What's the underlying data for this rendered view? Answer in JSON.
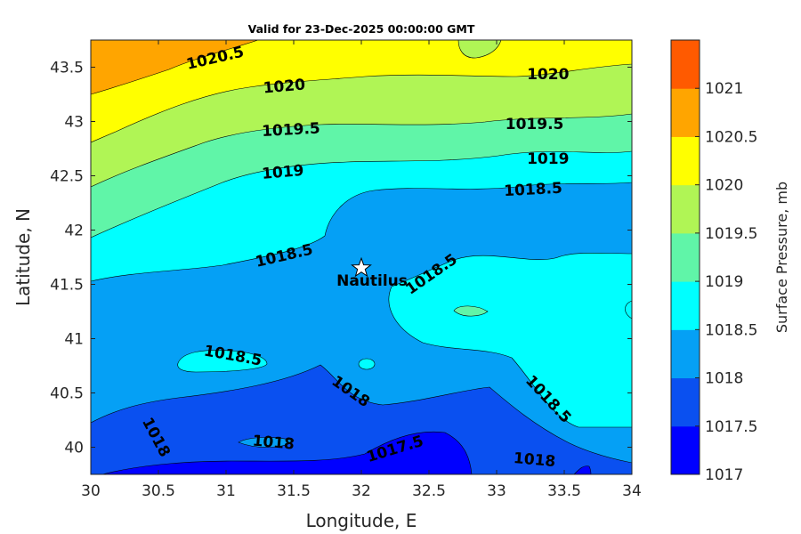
{
  "chart_data": {
    "type": "contourf",
    "title": "Valid for 23-Dec-2025 00:00:00 GMT",
    "xlabel": "Longitude, E",
    "ylabel": "Latitude, N",
    "xlim": [
      30,
      34
    ],
    "ylim": [
      39.75,
      43.75
    ],
    "xticks": [
      "30",
      "30.5",
      "31",
      "31.5",
      "32",
      "32.5",
      "33",
      "33.5",
      "34"
    ],
    "yticks": [
      "40",
      "40.5",
      "41",
      "41.5",
      "42",
      "42.5",
      "43",
      "43.5"
    ],
    "colorbar": {
      "label": "Surface Pressure, mb",
      "ticks": [
        "1017",
        "1017.5",
        "1018",
        "1018.5",
        "1019",
        "1019.5",
        "1020",
        "1020.5",
        "1021"
      ],
      "colors": [
        "#0000ff",
        "#0a50f0",
        "#05a0f5",
        "#00ffff",
        "#60f5a8",
        "#b0f555",
        "#ffff00",
        "#ffa500",
        "#ff5a00"
      ]
    },
    "contour_labels": [
      {
        "text": "1020.5",
        "lon": 30.92,
        "lat": 43.58,
        "angle": -13
      },
      {
        "text": "1020",
        "lon": 31.43,
        "lat": 43.32,
        "angle": -5
      },
      {
        "text": "1020",
        "lon": 33.38,
        "lat": 43.43,
        "angle": 0
      },
      {
        "text": "1019.5",
        "lon": 31.48,
        "lat": 42.92,
        "angle": -3
      },
      {
        "text": "1019.5",
        "lon": 33.28,
        "lat": 42.97,
        "angle": 0
      },
      {
        "text": "1019",
        "lon": 31.42,
        "lat": 42.53,
        "angle": -5
      },
      {
        "text": "1019",
        "lon": 33.38,
        "lat": 42.65,
        "angle": 0
      },
      {
        "text": "1018.5",
        "lon": 33.27,
        "lat": 42.37,
        "angle": -3
      },
      {
        "text": "1018.5",
        "lon": 31.43,
        "lat": 41.76,
        "angle": -13
      },
      {
        "text": "1018.5",
        "lon": 32.52,
        "lat": 41.59,
        "angle": -35
      },
      {
        "text": "1018.5",
        "lon": 31.05,
        "lat": 40.84,
        "angle": 10
      },
      {
        "text": "1018",
        "lon": 31.92,
        "lat": 40.51,
        "angle": 35
      },
      {
        "text": "1018.5",
        "lon": 33.38,
        "lat": 40.44,
        "angle": 47
      },
      {
        "text": "1018",
        "lon": 30.48,
        "lat": 40.09,
        "angle": 62
      },
      {
        "text": "1018",
        "lon": 31.35,
        "lat": 40.04,
        "angle": 5
      },
      {
        "text": "1017.5",
        "lon": 32.25,
        "lat": 39.98,
        "angle": -17
      },
      {
        "text": "1018",
        "lon": 33.28,
        "lat": 39.88,
        "angle": 5
      }
    ],
    "marker": {
      "label": "Nautilus",
      "lon": 32.0,
      "lat": 41.65
    }
  }
}
